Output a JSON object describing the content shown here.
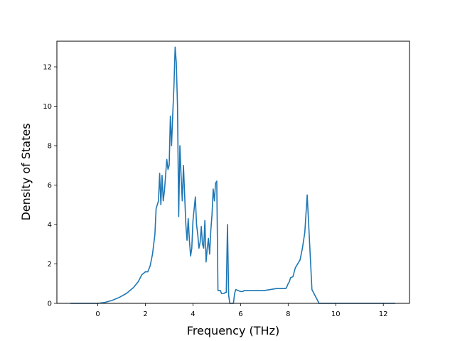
{
  "chart_data": {
    "type": "line",
    "title": "",
    "xlabel": "Frequency (THz)",
    "ylabel": "Density of States",
    "xlim": [
      -1.72,
      13.1
    ],
    "ylim": [
      0,
      13.3
    ],
    "xticks": [
      0,
      2,
      4,
      6,
      8,
      10,
      12
    ],
    "xtick_labels": [
      "0",
      "2",
      "4",
      "6",
      "8",
      "10",
      "12"
    ],
    "yticks": [
      0,
      2,
      4,
      6,
      8,
      10,
      12
    ],
    "ytick_labels": [
      "0",
      "2",
      "4",
      "6",
      "8",
      "10",
      "12"
    ],
    "grid": false,
    "legend": "none",
    "series": [
      {
        "color": "#1f77b4",
        "x": [
          -1.15,
          0.0,
          0.3,
          0.6,
          0.9,
          1.2,
          1.5,
          1.7,
          1.85,
          2.0,
          2.1,
          2.2,
          2.3,
          2.4,
          2.45,
          2.55,
          2.6,
          2.65,
          2.7,
          2.75,
          2.8,
          2.9,
          2.95,
          3.0,
          3.05,
          3.1,
          3.15,
          3.2,
          3.25,
          3.3,
          3.35,
          3.4,
          3.45,
          3.5,
          3.55,
          3.6,
          3.65,
          3.7,
          3.75,
          3.8,
          3.85,
          3.9,
          3.95,
          4.0,
          4.05,
          4.1,
          4.15,
          4.2,
          4.25,
          4.3,
          4.35,
          4.4,
          4.45,
          4.5,
          4.55,
          4.6,
          4.65,
          4.7,
          4.75,
          4.8,
          4.85,
          4.9,
          4.95,
          5.0,
          5.05,
          5.1,
          5.15,
          5.2,
          5.25,
          5.3,
          5.35,
          5.4,
          5.45,
          5.5,
          5.55,
          5.6,
          5.65,
          5.7,
          5.75,
          5.8,
          6.0,
          6.1,
          6.15,
          7.0,
          7.5,
          7.9,
          7.95,
          8.0,
          8.05,
          8.1,
          8.2,
          8.3,
          8.5,
          8.6,
          8.7,
          8.8,
          9.0,
          9.3,
          9.5,
          9.7,
          10.0,
          10.3,
          10.5,
          10.7,
          10.8,
          10.9,
          11.0,
          11.1,
          11.2,
          11.25,
          11.3,
          11.35,
          11.4,
          11.45,
          12.5
        ],
        "y": [
          0,
          0,
          0.05,
          0.15,
          0.3,
          0.5,
          0.8,
          1.1,
          1.45,
          1.6,
          1.6,
          1.9,
          2.5,
          3.5,
          4.8,
          5.2,
          6.6,
          5.0,
          6.5,
          5.2,
          5.7,
          7.3,
          6.8,
          7.0,
          9.5,
          8.0,
          9.6,
          11.0,
          13.0,
          12.2,
          10.0,
          4.4,
          8.0,
          6.5,
          5.2,
          7.0,
          5.5,
          4.0,
          3.2,
          4.3,
          3.2,
          2.4,
          2.8,
          4.2,
          4.8,
          5.4,
          4.0,
          3.5,
          2.8,
          3.1,
          3.9,
          3.0,
          2.8,
          4.2,
          2.1,
          2.8,
          3.3,
          2.5,
          3.7,
          4.5,
          5.8,
          5.2,
          6.1,
          6.2,
          0.65,
          0.65,
          0.65,
          0.5,
          0.5,
          0.5,
          0.55,
          0.55,
          4.0,
          0.4,
          0.0,
          0.0,
          0.0,
          0.0,
          0.5,
          0.7,
          0.6,
          0.6,
          0.65,
          0.65,
          0.75,
          0.75,
          0.85,
          1.0,
          1.1,
          1.3,
          1.35,
          1.8,
          2.2,
          2.8,
          3.6,
          5.5,
          0.7,
          0.0,
          0.0,
          0.0,
          0.0,
          0.0,
          0.0,
          0.0,
          0.0,
          0.0,
          0.0,
          0.0,
          0.0,
          0.0,
          0.0,
          0.0,
          0.0,
          0.0,
          0.0
        ]
      }
    ]
  }
}
